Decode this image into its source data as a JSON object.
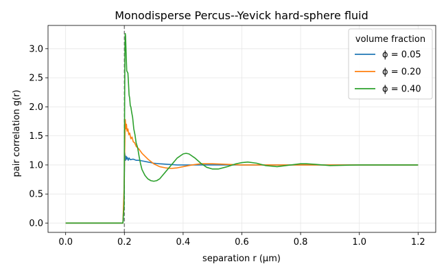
{
  "chart_data": {
    "type": "line",
    "title": "Monodisperse Percus--Yevick hard-sphere fluid",
    "xlabel": "separation r (μm)",
    "ylabel": "pair correlation g(r)",
    "xlim": [
      -0.06,
      1.26
    ],
    "ylim": [
      -0.16,
      3.4
    ],
    "xticks": [
      0.0,
      0.2,
      0.4,
      0.6,
      0.8,
      1.0,
      1.2
    ],
    "xtick_labels": [
      "0.0",
      "0.2",
      "0.4",
      "0.6",
      "0.8",
      "1.0",
      "1.2"
    ],
    "yticks": [
      0.0,
      0.5,
      1.0,
      1.5,
      2.0,
      2.5,
      3.0
    ],
    "ytick_labels": [
      "0.0",
      "0.5",
      "1.0",
      "1.5",
      "2.0",
      "2.5",
      "3.0"
    ],
    "grid": true,
    "vline": {
      "x": 0.2,
      "style": "dashed",
      "color": "#808080"
    },
    "legend": {
      "title": "volume fraction",
      "placement": "top-right"
    },
    "series": [
      {
        "name": "ϕ = 0.05",
        "color": "#1f77b4",
        "x": [
          0.0,
          0.1,
          0.195,
          0.199,
          0.201,
          0.204,
          0.206,
          0.208,
          0.21,
          0.213,
          0.216,
          0.22,
          0.23,
          0.24,
          0.25,
          0.26,
          0.28,
          0.3,
          0.32,
          0.35,
          0.38,
          0.4,
          0.45,
          0.5,
          0.6,
          0.7,
          0.8,
          0.9,
          1.0,
          1.1,
          1.2
        ],
        "y": [
          0.0,
          0.0,
          0.0,
          0.45,
          1.22,
          1.08,
          1.15,
          1.1,
          1.13,
          1.08,
          1.12,
          1.09,
          1.1,
          1.08,
          1.08,
          1.07,
          1.05,
          1.03,
          1.02,
          1.01,
          1.0,
          1.0,
          1.0,
          1.0,
          1.0,
          1.0,
          1.0,
          1.0,
          1.0,
          1.0,
          1.0
        ]
      },
      {
        "name": "ϕ = 0.20",
        "color": "#ff7f0e",
        "x": [
          0.0,
          0.1,
          0.195,
          0.199,
          0.201,
          0.203,
          0.205,
          0.207,
          0.209,
          0.212,
          0.215,
          0.218,
          0.222,
          0.226,
          0.23,
          0.235,
          0.24,
          0.25,
          0.26,
          0.28,
          0.3,
          0.32,
          0.34,
          0.36,
          0.38,
          0.4,
          0.43,
          0.46,
          0.5,
          0.55,
          0.6,
          0.7,
          0.8,
          0.9,
          1.0,
          1.1,
          1.2
        ],
        "y": [
          0.0,
          0.0,
          0.0,
          0.6,
          1.25,
          1.78,
          1.62,
          1.7,
          1.58,
          1.62,
          1.52,
          1.55,
          1.45,
          1.48,
          1.4,
          1.38,
          1.32,
          1.27,
          1.2,
          1.1,
          1.02,
          0.97,
          0.95,
          0.94,
          0.95,
          0.97,
          1.0,
          1.02,
          1.02,
          1.01,
          1.0,
          1.0,
          1.0,
          1.0,
          1.0,
          1.0,
          1.0
        ]
      },
      {
        "name": "ϕ = 0.40",
        "color": "#2ca02c",
        "x": [
          0.0,
          0.1,
          0.195,
          0.199,
          0.2,
          0.201,
          0.202,
          0.203,
          0.204,
          0.206,
          0.208,
          0.21,
          0.212,
          0.214,
          0.216,
          0.218,
          0.22,
          0.222,
          0.225,
          0.228,
          0.232,
          0.236,
          0.24,
          0.245,
          0.25,
          0.255,
          0.26,
          0.27,
          0.28,
          0.29,
          0.3,
          0.31,
          0.32,
          0.33,
          0.34,
          0.36,
          0.38,
          0.4,
          0.41,
          0.42,
          0.44,
          0.46,
          0.48,
          0.5,
          0.52,
          0.55,
          0.58,
          0.6,
          0.62,
          0.65,
          0.68,
          0.7,
          0.72,
          0.75,
          0.8,
          0.82,
          0.85,
          0.9,
          1.0,
          1.1,
          1.2
        ],
        "y": [
          0.0,
          0.0,
          0.0,
          0.3,
          1.3,
          2.2,
          3.05,
          3.26,
          3.22,
          2.9,
          2.62,
          2.6,
          2.58,
          2.4,
          2.2,
          2.15,
          2.02,
          2.0,
          1.9,
          1.82,
          1.62,
          1.52,
          1.38,
          1.3,
          1.15,
          1.02,
          0.92,
          0.82,
          0.76,
          0.73,
          0.72,
          0.73,
          0.76,
          0.82,
          0.88,
          1.0,
          1.12,
          1.19,
          1.2,
          1.19,
          1.12,
          1.03,
          0.96,
          0.93,
          0.93,
          0.97,
          1.02,
          1.04,
          1.05,
          1.03,
          0.99,
          0.98,
          0.97,
          0.99,
          1.02,
          1.02,
          1.01,
          0.99,
          1.0,
          1.0,
          1.0
        ]
      }
    ]
  }
}
